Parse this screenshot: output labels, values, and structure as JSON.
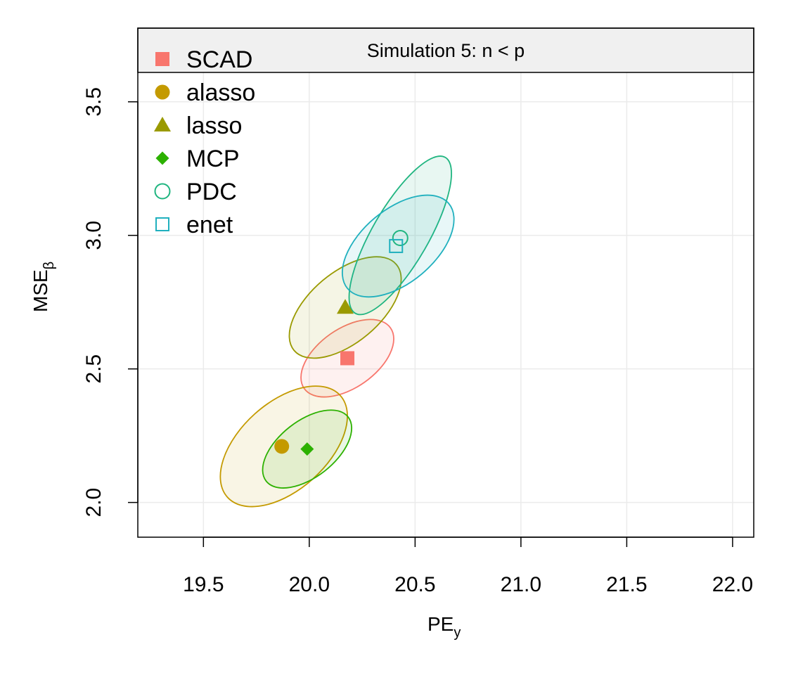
{
  "chart_data": {
    "type": "scatter",
    "title": "Simulation 5: n < p",
    "xlabel": {
      "main": "PE",
      "sub": "y"
    },
    "ylabel": {
      "main": "MSE",
      "sub": "β"
    },
    "xlim": [
      19.19,
      22.1
    ],
    "ylim": [
      1.87,
      3.61
    ],
    "xticks": [
      "19.5",
      "20.0",
      "20.5",
      "21.0",
      "21.5",
      "22.0"
    ],
    "yticks": [
      "2.0",
      "2.5",
      "3.0",
      "3.5"
    ],
    "grid": true,
    "legend_position": "top-left",
    "series": [
      {
        "name": "SCAD",
        "color": "#F8766D",
        "marker": "filled-square",
        "x": 20.18,
        "y": 2.54,
        "ellipse": {
          "cx": 20.18,
          "cy": 2.54,
          "major_axis_angle_deg": 35
        }
      },
      {
        "name": "alasso",
        "color": "#C49A00",
        "marker": "filled-circle",
        "x": 19.87,
        "y": 2.21,
        "ellipse": {
          "cx": 19.88,
          "cy": 2.21,
          "major_axis_angle_deg": 42
        }
      },
      {
        "name": "lasso",
        "color": "#9A9A00",
        "marker": "filled-triangle",
        "x": 20.17,
        "y": 2.73,
        "ellipse": {
          "cx": 20.17,
          "cy": 2.73,
          "major_axis_angle_deg": 40
        }
      },
      {
        "name": "MCP",
        "color": "#2CB100",
        "marker": "filled-diamond",
        "x": 19.99,
        "y": 2.2,
        "ellipse": {
          "cx": 19.99,
          "cy": 2.2,
          "major_axis_angle_deg": 38
        }
      },
      {
        "name": "PDC",
        "color": "#20B580",
        "marker": "open-circle",
        "x": 20.43,
        "y": 2.99,
        "ellipse": {
          "cx": 20.43,
          "cy": 3.0,
          "major_axis_angle_deg": 60
        }
      },
      {
        "name": "enet",
        "color": "#20B0BE",
        "marker": "open-square",
        "x": 20.41,
        "y": 2.96,
        "ellipse": {
          "cx": 20.42,
          "cy": 2.96,
          "major_axis_angle_deg": 40
        }
      }
    ]
  }
}
